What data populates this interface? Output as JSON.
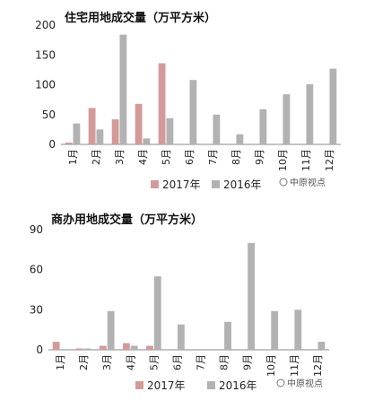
{
  "colors": {
    "s2017": "#d49a9a",
    "s2016": "#b2b2b2",
    "axis": "#888888"
  },
  "watermark": "中原视点",
  "chart_data": [
    {
      "type": "bar",
      "title": "住宅用地成交量（万平方米）",
      "categories": [
        "1月",
        "2月",
        "3月",
        "4月",
        "5月",
        "6月",
        "7月",
        "8月",
        "9月",
        "10月",
        "11月",
        "12月"
      ],
      "series": [
        {
          "name": "2017年",
          "values": [
            3,
            61,
            42,
            68,
            136,
            null,
            null,
            null,
            null,
            null,
            null,
            null
          ]
        },
        {
          "name": "2016年",
          "values": [
            35,
            25,
            184,
            10,
            44,
            108,
            50,
            17,
            59,
            84,
            101,
            127
          ]
        }
      ],
      "yticks": [
        0,
        50,
        100,
        150,
        200
      ],
      "ylim": [
        0,
        200
      ],
      "legend": "bottom"
    },
    {
      "type": "bar",
      "title": "商办用地成交量（万平方米）",
      "categories": [
        "1月",
        "2月",
        "3月",
        "4月",
        "5月",
        "6月",
        "7月",
        "8月",
        "9月",
        "10月",
        "11月",
        "12月"
      ],
      "series": [
        {
          "name": "2017年",
          "values": [
            6,
            1,
            3,
            5,
            3,
            null,
            null,
            null,
            null,
            null,
            null,
            null
          ]
        },
        {
          "name": "2016年",
          "values": [
            0,
            1,
            29,
            3,
            55,
            19,
            0,
            21,
            80,
            29,
            30,
            6
          ]
        }
      ],
      "yticks": [
        0,
        30,
        60,
        90
      ],
      "ylim": [
        0,
        90
      ],
      "legend": "bottom"
    }
  ]
}
